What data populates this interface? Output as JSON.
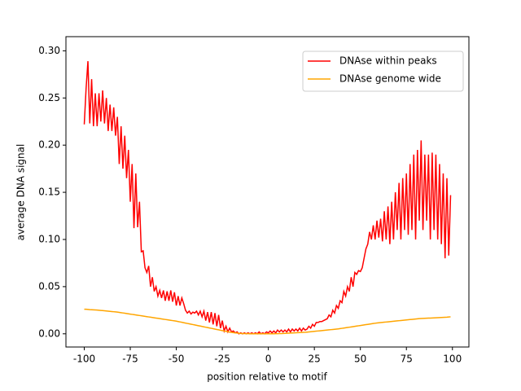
{
  "chart_data": {
    "type": "line",
    "xlabel": "position relative to motif",
    "ylabel": "average DNA signal",
    "x": [
      -100,
      -99,
      -98,
      -97,
      -96,
      -95,
      -94,
      -93,
      -92,
      -91,
      -90,
      -89,
      -88,
      -87,
      -86,
      -85,
      -84,
      -83,
      -82,
      -81,
      -80,
      -79,
      -78,
      -77,
      -76,
      -75,
      -74,
      -73,
      -72,
      -71,
      -70,
      -69,
      -68,
      -67,
      -66,
      -65,
      -64,
      -63,
      -62,
      -61,
      -60,
      -59,
      -58,
      -57,
      -56,
      -55,
      -54,
      -53,
      -52,
      -51,
      -50,
      -49,
      -48,
      -47,
      -46,
      -45,
      -44,
      -43,
      -42,
      -41,
      -40,
      -39,
      -38,
      -37,
      -36,
      -35,
      -34,
      -33,
      -32,
      -31,
      -30,
      -29,
      -28,
      -27,
      -26,
      -25,
      -24,
      -23,
      -22,
      -21,
      -20,
      -19,
      -18,
      -17,
      -16,
      -15,
      -14,
      -13,
      -12,
      -11,
      -10,
      -9,
      -8,
      -7,
      -6,
      -5,
      -4,
      -3,
      -2,
      -1,
      0,
      1,
      2,
      3,
      4,
      5,
      6,
      7,
      8,
      9,
      10,
      11,
      12,
      13,
      14,
      15,
      16,
      17,
      18,
      19,
      20,
      21,
      22,
      23,
      24,
      25,
      26,
      27,
      28,
      29,
      30,
      31,
      32,
      33,
      34,
      35,
      36,
      37,
      38,
      39,
      40,
      41,
      42,
      43,
      44,
      45,
      46,
      47,
      48,
      49,
      50,
      51,
      52,
      53,
      54,
      55,
      56,
      57,
      58,
      59,
      60,
      61,
      62,
      63,
      64,
      65,
      66,
      67,
      68,
      69,
      70,
      71,
      72,
      73,
      74,
      75,
      76,
      77,
      78,
      79,
      80,
      81,
      82,
      83,
      84,
      85,
      86,
      87,
      88,
      89,
      90,
      91,
      92,
      93,
      94,
      95,
      96,
      97,
      98,
      99
    ],
    "series": [
      {
        "name": "DNAse within peaks",
        "color": "#ff0000",
        "values": [
          0.222,
          0.26,
          0.289,
          0.223,
          0.27,
          0.22,
          0.255,
          0.22,
          0.255,
          0.225,
          0.258,
          0.223,
          0.25,
          0.215,
          0.243,
          0.215,
          0.24,
          0.21,
          0.23,
          0.18,
          0.22,
          0.175,
          0.21,
          0.165,
          0.195,
          0.14,
          0.18,
          0.112,
          0.17,
          0.113,
          0.14,
          0.087,
          0.088,
          0.07,
          0.065,
          0.072,
          0.05,
          0.06,
          0.045,
          0.05,
          0.04,
          0.046,
          0.038,
          0.046,
          0.035,
          0.045,
          0.035,
          0.046,
          0.034,
          0.044,
          0.03,
          0.04,
          0.03,
          0.038,
          0.032,
          0.025,
          0.022,
          0.024,
          0.021,
          0.023,
          0.022,
          0.024,
          0.02,
          0.024,
          0.018,
          0.024,
          0.014,
          0.023,
          0.012,
          0.023,
          0.01,
          0.022,
          0.008,
          0.02,
          0.006,
          0.014,
          0.003,
          0.008,
          0.002,
          0.006,
          0.002,
          0.003,
          0.001,
          0.002,
          0,
          0.001,
          0,
          0.001,
          0,
          0.001,
          0,
          0.001,
          0,
          0.001,
          0,
          0.002,
          0,
          0.001,
          0,
          0.002,
          0.001,
          0.003,
          0.001,
          0.003,
          0.001,
          0.004,
          0.002,
          0.004,
          0.002,
          0.004,
          0.002,
          0.005,
          0.002,
          0.005,
          0.003,
          0.005,
          0.003,
          0.006,
          0.003,
          0.006,
          0.004,
          0.005,
          0.008,
          0.006,
          0.01,
          0.008,
          0.012,
          0.012,
          0.013,
          0.013,
          0.014,
          0.015,
          0.016,
          0.02,
          0.018,
          0.025,
          0.022,
          0.03,
          0.027,
          0.035,
          0.033,
          0.045,
          0.04,
          0.05,
          0.045,
          0.06,
          0.05,
          0.065,
          0.063,
          0.067,
          0.066,
          0.07,
          0.08,
          0.09,
          0.095,
          0.108,
          0.1,
          0.115,
          0.1,
          0.12,
          0.102,
          0.122,
          0.098,
          0.13,
          0.1,
          0.135,
          0.095,
          0.14,
          0.1,
          0.15,
          0.11,
          0.16,
          0.1,
          0.165,
          0.11,
          0.17,
          0.105,
          0.18,
          0.11,
          0.19,
          0.1,
          0.195,
          0.12,
          0.205,
          0.11,
          0.19,
          0.12,
          0.19,
          0.1,
          0.192,
          0.11,
          0.19,
          0.1,
          0.18,
          0.095,
          0.17,
          0.08,
          0.165,
          0.083,
          0.147
        ]
      },
      {
        "name": "DNAse genome wide",
        "color": "#ffa500",
        "values": [
          0.026,
          0.026,
          0.0258,
          0.0256,
          0.0255,
          0.0254,
          0.0253,
          0.0252,
          0.025,
          0.0248,
          0.0246,
          0.0244,
          0.0242,
          0.024,
          0.0238,
          0.0236,
          0.0234,
          0.0232,
          0.023,
          0.0227,
          0.0224,
          0.0221,
          0.0218,
          0.0215,
          0.0212,
          0.0209,
          0.0206,
          0.0203,
          0.02,
          0.0197,
          0.0194,
          0.0191,
          0.0188,
          0.0185,
          0.0182,
          0.0179,
          0.0176,
          0.0173,
          0.017,
          0.0167,
          0.0164,
          0.0161,
          0.0158,
          0.0155,
          0.0152,
          0.0149,
          0.0146,
          0.0143,
          0.014,
          0.0137,
          0.0134,
          0.013,
          0.0126,
          0.0122,
          0.0118,
          0.0114,
          0.011,
          0.0106,
          0.0102,
          0.0098,
          0.0094,
          0.009,
          0.0086,
          0.0082,
          0.0078,
          0.0074,
          0.007,
          0.0066,
          0.0062,
          0.0058,
          0.0054,
          0.005,
          0.0046,
          0.0042,
          0.0038,
          0.0034,
          0.003,
          0.0026,
          0.0022,
          0.0018,
          0.0015,
          0.0012,
          0.001,
          0.0008,
          0.0006,
          0.0004,
          0.0003,
          0.0002,
          0.0001,
          0.0001,
          0,
          0,
          0,
          0,
          0,
          0,
          0,
          0,
          0,
          0,
          0,
          0,
          0,
          0,
          0.0001,
          0.0001,
          0.0002,
          0.0003,
          0.0004,
          0.0005,
          0.0006,
          0.0007,
          0.0008,
          0.0009,
          0.001,
          0.0011,
          0.0012,
          0.0013,
          0.0014,
          0.0015,
          0.0016,
          0.0018,
          0.002,
          0.0022,
          0.0024,
          0.0026,
          0.0028,
          0.003,
          0.0032,
          0.0034,
          0.0036,
          0.0038,
          0.004,
          0.0042,
          0.0044,
          0.0046,
          0.0048,
          0.005,
          0.0052,
          0.0055,
          0.0058,
          0.0061,
          0.0064,
          0.0067,
          0.007,
          0.0073,
          0.0076,
          0.0079,
          0.0082,
          0.0085,
          0.0088,
          0.0091,
          0.0094,
          0.0097,
          0.01,
          0.0103,
          0.0106,
          0.0109,
          0.0112,
          0.0115,
          0.0117,
          0.0119,
          0.0121,
          0.0123,
          0.0125,
          0.0127,
          0.0129,
          0.0131,
          0.0133,
          0.0135,
          0.0137,
          0.0139,
          0.0141,
          0.0143,
          0.0145,
          0.0147,
          0.0149,
          0.0151,
          0.0153,
          0.0155,
          0.0157,
          0.0159,
          0.0161,
          0.0162,
          0.0163,
          0.0164,
          0.0165,
          0.0166,
          0.0167,
          0.0168,
          0.0169,
          0.017,
          0.0171,
          0.0172,
          0.0173,
          0.0174,
          0.0175,
          0.0176,
          0.0178,
          0.018
        ]
      }
    ],
    "xlim": [
      -109.95,
      108.95
    ],
    "xticks": [
      -100,
      -75,
      -50,
      -25,
      0,
      25,
      50,
      75,
      100
    ],
    "ylim": [
      -0.014,
      0.315
    ],
    "yticks": [
      {
        "value": 0,
        "label": "0.00"
      },
      {
        "value": 0.05,
        "label": "0.05"
      },
      {
        "value": 0.1,
        "label": "0.10"
      },
      {
        "value": 0.15,
        "label": "0.15"
      },
      {
        "value": 0.2,
        "label": "0.20"
      },
      {
        "value": 0.25,
        "label": "0.25"
      },
      {
        "value": 0.3,
        "label": "0.30"
      }
    ],
    "grid": false,
    "legend": "upper right"
  }
}
